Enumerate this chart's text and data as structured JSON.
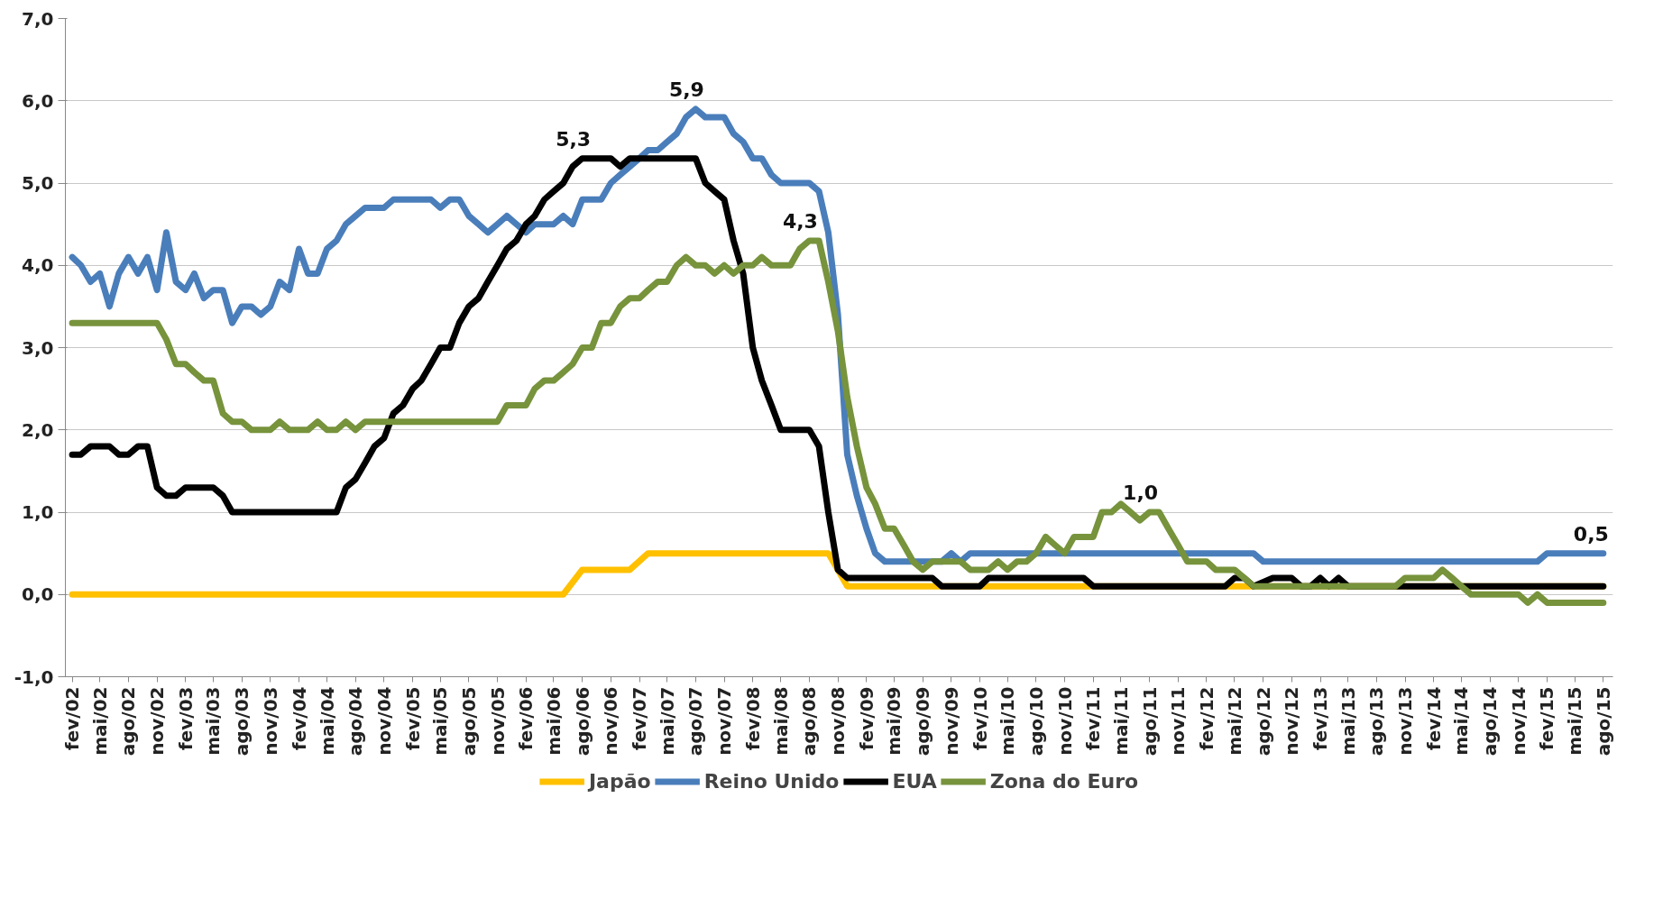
{
  "chart_data": {
    "type": "line",
    "xlim": [
      "2002-01-10",
      "2015-09-01"
    ],
    "ylim": [
      -1,
      7
    ],
    "yticks": [
      {
        "value": -1,
        "label": "-1,0"
      },
      {
        "value": 0,
        "label": "0,0"
      },
      {
        "value": 1,
        "label": "1,0"
      },
      {
        "value": 2,
        "label": "2,0"
      },
      {
        "value": 3,
        "label": "3,0"
      },
      {
        "value": 4,
        "label": "4,0"
      },
      {
        "value": 5,
        "label": "5,0"
      },
      {
        "value": 6,
        "label": "6,0"
      },
      {
        "value": 7,
        "label": "7,0"
      }
    ],
    "xticks": [
      {
        "value": "2002-02",
        "label": "fev/02"
      },
      {
        "value": "2002-05",
        "label": "mai/02"
      },
      {
        "value": "2002-08",
        "label": "ago/02"
      },
      {
        "value": "2002-11",
        "label": "nov/02"
      },
      {
        "value": "2003-02",
        "label": "fev/03"
      },
      {
        "value": "2003-05",
        "label": "mai/03"
      },
      {
        "value": "2003-08",
        "label": "ago/03"
      },
      {
        "value": "2003-11",
        "label": "nov/03"
      },
      {
        "value": "2004-02",
        "label": "fev/04"
      },
      {
        "value": "2004-05",
        "label": "mai/04"
      },
      {
        "value": "2004-08",
        "label": "ago/04"
      },
      {
        "value": "2004-11",
        "label": "nov/04"
      },
      {
        "value": "2005-02",
        "label": "fev/05"
      },
      {
        "value": "2005-05",
        "label": "mai/05"
      },
      {
        "value": "2005-08",
        "label": "ago/05"
      },
      {
        "value": "2005-11",
        "label": "nov/05"
      },
      {
        "value": "2006-02",
        "label": "fev/06"
      },
      {
        "value": "2006-05",
        "label": "mai/06"
      },
      {
        "value": "2006-08",
        "label": "ago/06"
      },
      {
        "value": "2006-11",
        "label": "nov/06"
      },
      {
        "value": "2007-02",
        "label": "fev/07"
      },
      {
        "value": "2007-05",
        "label": "mai/07"
      },
      {
        "value": "2007-08",
        "label": "ago/07"
      },
      {
        "value": "2007-11",
        "label": "nov/07"
      },
      {
        "value": "2008-02",
        "label": "fev/08"
      },
      {
        "value": "2008-05",
        "label": "mai/08"
      },
      {
        "value": "2008-08",
        "label": "ago/08"
      },
      {
        "value": "2008-11",
        "label": "nov/08"
      },
      {
        "value": "2009-02",
        "label": "fev/09"
      },
      {
        "value": "2009-05",
        "label": "mai/09"
      },
      {
        "value": "2009-08",
        "label": "ago/09"
      },
      {
        "value": "2009-11",
        "label": "nov/09"
      },
      {
        "value": "2010-02",
        "label": "fev/10"
      },
      {
        "value": "2010-05",
        "label": "mai/10"
      },
      {
        "value": "2010-08",
        "label": "ago/10"
      },
      {
        "value": "2010-11",
        "label": "nov/10"
      },
      {
        "value": "2011-02",
        "label": "fev/11"
      },
      {
        "value": "2011-05",
        "label": "mai/11"
      },
      {
        "value": "2011-08",
        "label": "ago/11"
      },
      {
        "value": "2011-11",
        "label": "nov/11"
      },
      {
        "value": "2012-02",
        "label": "fev/12"
      },
      {
        "value": "2012-05",
        "label": "mai/12"
      },
      {
        "value": "2012-08",
        "label": "ago/12"
      },
      {
        "value": "2012-11",
        "label": "nov/12"
      },
      {
        "value": "2013-02",
        "label": "fev/13"
      },
      {
        "value": "2013-05",
        "label": "mai/13"
      },
      {
        "value": "2013-08",
        "label": "ago/13"
      },
      {
        "value": "2013-11",
        "label": "nov/13"
      },
      {
        "value": "2014-02",
        "label": "fev/14"
      },
      {
        "value": "2014-05",
        "label": "mai/14"
      },
      {
        "value": "2014-08",
        "label": "ago/14"
      },
      {
        "value": "2014-11",
        "label": "nov/14"
      },
      {
        "value": "2015-02",
        "label": "fev/15"
      },
      {
        "value": "2015-05",
        "label": "mai/15"
      },
      {
        "value": "2015-08",
        "label": "ago/15"
      }
    ],
    "grid": "y",
    "legend": "bottom",
    "line_style": "solid",
    "series": [
      {
        "name": "Japão",
        "color": "#ffc000",
        "x": [
          "2002-02",
          "2006-06",
          "2006-08",
          "2007-01",
          "2007-03",
          "2008-10",
          "2008-12",
          "2015-08"
        ],
        "values": [
          0,
          0,
          0.3,
          0.3,
          0.5,
          0.5,
          0.1,
          0.1
        ]
      },
      {
        "name": "Reino Unido",
        "color": "#4a7ebb",
        "x": [
          "2002-02",
          "2002-03",
          "2002-04",
          "2002-05",
          "2002-06",
          "2002-07",
          "2002-08",
          "2002-09",
          "2002-10",
          "2002-11",
          "2002-12",
          "2003-01",
          "2003-02",
          "2003-03",
          "2003-04",
          "2003-05",
          "2003-06",
          "2003-07",
          "2003-08",
          "2003-09",
          "2003-10",
          "2003-11",
          "2003-12",
          "2004-01",
          "2004-02",
          "2004-03",
          "2004-04",
          "2004-05",
          "2004-06",
          "2004-07",
          "2004-08",
          "2004-09",
          "2004-10",
          "2004-11",
          "2004-12",
          "2005-04",
          "2005-05",
          "2005-06",
          "2005-07",
          "2005-08",
          "2005-09",
          "2005-10",
          "2005-11",
          "2005-12",
          "2006-01",
          "2006-02",
          "2006-03",
          "2006-04",
          "2006-05",
          "2006-06",
          "2006-07",
          "2006-08",
          "2006-09",
          "2006-10",
          "2006-11",
          "2006-12",
          "2007-01",
          "2007-02",
          "2007-03",
          "2007-04",
          "2007-05",
          "2007-06",
          "2007-07",
          "2007-08",
          "2007-09",
          "2007-10",
          "2007-11",
          "2007-12",
          "2008-01",
          "2008-02",
          "2008-03",
          "2008-04",
          "2008-05",
          "2008-06",
          "2008-07",
          "2008-08",
          "2008-09",
          "2008-10",
          "2008-11",
          "2008-12",
          "2009-01",
          "2009-02",
          "2009-03",
          "2009-04",
          "2009-10",
          "2009-11",
          "2009-12",
          "2010-01",
          "2012-07",
          "2012-08",
          "2015-01",
          "2015-02",
          "2015-08"
        ],
        "values": [
          4.1,
          4.0,
          3.8,
          3.9,
          3.5,
          3.9,
          4.1,
          3.9,
          4.1,
          3.7,
          4.4,
          3.8,
          3.7,
          3.9,
          3.6,
          3.7,
          3.7,
          3.3,
          3.5,
          3.5,
          3.4,
          3.5,
          3.8,
          3.7,
          4.2,
          3.9,
          3.9,
          4.2,
          4.3,
          4.5,
          4.6,
          4.7,
          4.7,
          4.7,
          4.8,
          4.8,
          4.7,
          4.8,
          4.8,
          4.6,
          4.5,
          4.4,
          4.5,
          4.6,
          4.5,
          4.4,
          4.5,
          4.5,
          4.5,
          4.6,
          4.5,
          4.8,
          4.8,
          4.8,
          5.0,
          5.1,
          5.2,
          5.3,
          5.4,
          5.4,
          5.5,
          5.6,
          5.8,
          5.9,
          5.8,
          5.8,
          5.8,
          5.6,
          5.5,
          5.3,
          5.3,
          5.1,
          5.0,
          5.0,
          5.0,
          5.0,
          4.9,
          4.4,
          3.4,
          1.7,
          1.2,
          0.8,
          0.5,
          0.4,
          0.4,
          0.5,
          0.4,
          0.5,
          0.5,
          0.4,
          0.4,
          0.5,
          0.5
        ]
      },
      {
        "name": "EUA",
        "color": "#000000",
        "x": [
          "2002-02",
          "2002-03",
          "2002-04",
          "2002-06",
          "2002-07",
          "2002-08",
          "2002-09",
          "2002-10",
          "2002-11",
          "2002-12",
          "2003-01",
          "2003-02",
          "2003-05",
          "2003-06",
          "2003-07",
          "2004-06",
          "2004-07",
          "2004-08",
          "2004-09",
          "2004-10",
          "2004-11",
          "2004-12",
          "2005-01",
          "2005-02",
          "2005-03",
          "2005-04",
          "2005-05",
          "2005-06",
          "2005-07",
          "2005-08",
          "2005-09",
          "2005-10",
          "2005-11",
          "2005-12",
          "2006-01",
          "2006-02",
          "2006-03",
          "2006-04",
          "2006-05",
          "2006-06",
          "2006-07",
          "2006-08",
          "2006-11",
          "2006-12",
          "2007-01",
          "2007-08",
          "2007-09",
          "2007-10",
          "2007-11",
          "2007-12",
          "2008-01",
          "2008-02",
          "2008-03",
          "2008-04",
          "2008-05",
          "2008-08",
          "2008-09",
          "2008-10",
          "2008-11",
          "2008-12",
          "2009-09",
          "2009-10",
          "2010-02",
          "2010-03",
          "2011-01",
          "2011-02",
          "2012-04",
          "2012-05",
          "2012-06",
          "2012-07",
          "2012-09",
          "2012-10",
          "2012-11",
          "2012-12",
          "2013-01",
          "2013-02",
          "2013-03",
          "2013-04",
          "2013-05",
          "2015-08"
        ],
        "values": [
          1.7,
          1.7,
          1.8,
          1.8,
          1.7,
          1.7,
          1.8,
          1.8,
          1.3,
          1.2,
          1.2,
          1.3,
          1.3,
          1.2,
          1.0,
          1.0,
          1.3,
          1.4,
          1.6,
          1.8,
          1.9,
          2.2,
          2.3,
          2.5,
          2.6,
          2.8,
          3.0,
          3.0,
          3.3,
          3.5,
          3.6,
          3.8,
          4.0,
          4.2,
          4.3,
          4.5,
          4.6,
          4.8,
          4.9,
          5.0,
          5.2,
          5.3,
          5.3,
          5.2,
          5.3,
          5.3,
          5.0,
          4.9,
          4.8,
          4.3,
          3.9,
          3.0,
          2.6,
          2.3,
          2.0,
          2.0,
          1.8,
          1.0,
          0.3,
          0.2,
          0.2,
          0.1,
          0.1,
          0.2,
          0.2,
          0.1,
          0.1,
          0.2,
          0.2,
          0.1,
          0.2,
          0.2,
          0.2,
          0.1,
          0.1,
          0.2,
          0.1,
          0.2,
          0.1,
          0.1
        ]
      },
      {
        "name": "Zona do Euro",
        "color": "#77933c",
        "x": [
          "2002-02",
          "2002-11",
          "2002-12",
          "2003-01",
          "2003-02",
          "2003-03",
          "2003-04",
          "2003-05",
          "2003-06",
          "2003-07",
          "2003-08",
          "2003-09",
          "2003-10",
          "2003-11",
          "2003-12",
          "2004-01",
          "2004-02",
          "2004-03",
          "2004-04",
          "2004-05",
          "2004-06",
          "2004-07",
          "2004-08",
          "2004-09",
          "2005-11",
          "2005-12",
          "2006-01",
          "2006-02",
          "2006-03",
          "2006-04",
          "2006-05",
          "2006-06",
          "2006-07",
          "2006-08",
          "2006-09",
          "2006-10",
          "2006-11",
          "2006-12",
          "2007-01",
          "2007-02",
          "2007-03",
          "2007-04",
          "2007-05",
          "2007-06",
          "2007-07",
          "2007-08",
          "2007-09",
          "2007-10",
          "2007-11",
          "2007-12",
          "2008-01",
          "2008-02",
          "2008-03",
          "2008-04",
          "2008-05",
          "2008-06",
          "2008-07",
          "2008-08",
          "2008-09",
          "2008-10",
          "2008-11",
          "2008-12",
          "2009-01",
          "2009-02",
          "2009-03",
          "2009-04",
          "2009-05",
          "2009-06",
          "2009-07",
          "2009-08",
          "2009-09",
          "2009-10",
          "2009-11",
          "2009-12",
          "2010-01",
          "2010-02",
          "2010-03",
          "2010-04",
          "2010-05",
          "2010-06",
          "2010-07",
          "2010-08",
          "2010-09",
          "2010-10",
          "2010-11",
          "2010-12",
          "2011-01",
          "2011-02",
          "2011-03",
          "2011-04",
          "2011-05",
          "2011-06",
          "2011-07",
          "2011-08",
          "2011-09",
          "2011-10",
          "2011-11",
          "2011-12",
          "2012-01",
          "2012-02",
          "2012-03",
          "2012-04",
          "2012-05",
          "2012-06",
          "2012-07",
          "2013-10",
          "2013-11",
          "2014-02",
          "2014-03",
          "2014-04",
          "2014-05",
          "2014-06",
          "2014-11",
          "2014-12",
          "2015-01",
          "2015-02",
          "2015-08"
        ],
        "values": [
          3.3,
          3.3,
          3.1,
          2.8,
          2.8,
          2.7,
          2.6,
          2.6,
          2.2,
          2.1,
          2.1,
          2.0,
          2.0,
          2.0,
          2.1,
          2.0,
          2.0,
          2.0,
          2.1,
          2.0,
          2.0,
          2.1,
          2.0,
          2.1,
          2.1,
          2.3,
          2.3,
          2.3,
          2.5,
          2.6,
          2.6,
          2.7,
          2.8,
          3.0,
          3.0,
          3.3,
          3.3,
          3.5,
          3.6,
          3.6,
          3.7,
          3.8,
          3.8,
          4.0,
          4.1,
          4.0,
          4.0,
          3.9,
          4.0,
          3.9,
          4.0,
          4.0,
          4.1,
          4.0,
          4.0,
          4.0,
          4.2,
          4.3,
          4.3,
          3.8,
          3.2,
          2.4,
          1.8,
          1.3,
          1.1,
          0.8,
          0.8,
          0.6,
          0.4,
          0.3,
          0.4,
          0.4,
          0.4,
          0.4,
          0.3,
          0.3,
          0.3,
          0.4,
          0.3,
          0.4,
          0.4,
          0.5,
          0.7,
          0.6,
          0.5,
          0.7,
          0.7,
          0.7,
          1.0,
          1.0,
          1.1,
          1.0,
          0.9,
          1.0,
          1.0,
          0.8,
          0.6,
          0.4,
          0.4,
          0.4,
          0.3,
          0.3,
          0.3,
          0.2,
          0.1,
          0.1,
          0.2,
          0.2,
          0.3,
          0.2,
          0.1,
          0.0,
          0.0,
          -0.1,
          0.0,
          -0.1,
          -0.1
        ]
      }
    ],
    "annotations": [
      {
        "text": "5,3",
        "x": "2006-08",
        "y": 5.3
      },
      {
        "text": "5,9",
        "x": "2007-08",
        "y": 5.9
      },
      {
        "text": "4,3",
        "x": "2008-08",
        "y": 4.3
      },
      {
        "text": "1,0",
        "x": "2011-08",
        "y": 1.0
      },
      {
        "text": "0,5",
        "x": "2015-08",
        "y": 0.5
      }
    ]
  }
}
